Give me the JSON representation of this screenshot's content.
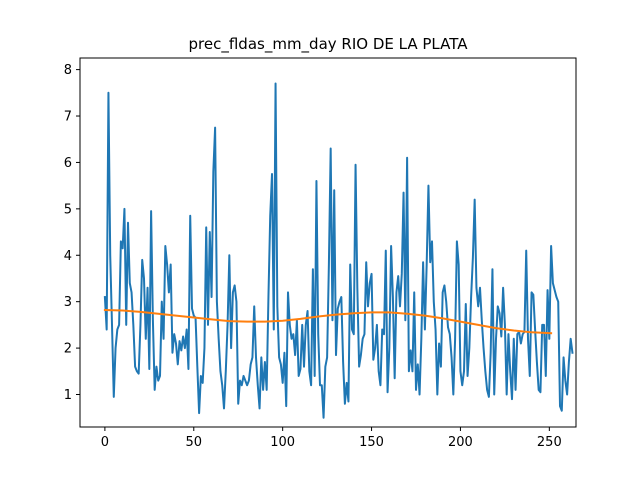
{
  "chart_data": {
    "type": "line",
    "title": "prec_fldas_mm_day RIO DE LA PLATA",
    "xlabel": "",
    "ylabel": "",
    "xlim": [
      -14,
      265
    ],
    "ylim": [
      0.3,
      8.25
    ],
    "grid": false,
    "xticks": [
      0,
      50,
      100,
      150,
      200,
      250
    ],
    "yticks": [
      1,
      2,
      3,
      4,
      5,
      6,
      7,
      8
    ],
    "colors": {
      "series_raw": "#1f77b4",
      "series_trend": "#ff7f0e"
    },
    "series": [
      {
        "values": [
          3.1,
          2.4,
          7.5,
          4.0,
          2.5,
          0.95,
          2.0,
          2.4,
          2.5,
          4.3,
          4.15,
          5.0,
          2.5,
          4.7,
          3.4,
          3.2,
          2.5,
          1.6,
          1.5,
          1.45,
          2.5,
          3.9,
          3.5,
          2.2,
          3.3,
          1.55,
          4.95,
          2.6,
          1.1,
          1.6,
          1.3,
          1.4,
          3.0,
          2.2,
          4.2,
          3.8,
          3.2,
          3.8,
          1.9,
          2.3,
          2.1,
          1.65,
          2.15,
          1.95,
          2.25,
          2.0,
          2.4,
          1.55,
          4.85,
          2.85,
          2.7,
          2.65,
          1.6,
          0.6,
          1.4,
          1.25,
          2.0,
          4.6,
          2.5,
          4.5,
          3.1,
          5.8,
          6.75,
          3.0,
          2.2,
          1.5,
          1.2,
          0.7,
          1.5,
          2.5,
          4.0,
          2.0,
          3.2,
          3.35,
          3.0,
          0.8,
          1.3,
          1.2,
          1.4,
          1.3,
          1.2,
          1.3,
          1.65,
          1.8,
          2.9,
          1.8,
          1.2,
          0.7,
          1.8,
          1.1,
          1.7,
          1.1,
          3.1,
          4.85,
          5.75,
          2.4,
          7.7,
          2.9,
          1.8,
          1.65,
          1.25,
          1.9,
          0.75,
          3.2,
          2.5,
          2.2,
          2.3,
          1.85,
          2.6,
          1.4,
          1.55,
          2.5,
          1.6,
          2.5,
          2.8,
          1.5,
          1.2,
          3.7,
          1.4,
          5.6,
          2.3,
          1.2,
          1.2,
          0.5,
          1.6,
          1.8,
          3.8,
          6.3,
          2.6,
          5.4,
          1.85,
          2.85,
          3.0,
          3.1,
          1.7,
          0.8,
          1.25,
          0.85,
          3.8,
          2.4,
          2.3,
          5.95,
          3.3,
          1.6,
          1.85,
          2.2,
          2.3,
          3.85,
          2.9,
          3.4,
          3.6,
          1.75,
          2.0,
          2.5,
          1.5,
          1.2,
          2.4,
          2.3,
          4.1,
          1.05,
          2.0,
          4.2,
          3.1,
          1.35,
          3.2,
          3.55,
          2.9,
          3.6,
          5.35,
          2.6,
          6.1,
          1.5,
          1.95,
          1.5,
          3.2,
          1.1,
          1.65,
          1.0,
          2.2,
          3.85,
          2.4,
          3.8,
          5.5,
          3.85,
          4.3,
          3.0,
          2.4,
          1.0,
          2.1,
          1.6,
          3.2,
          3.35,
          3.0,
          2.45,
          2.3,
          1.8,
          1.0,
          2.2,
          4.3,
          3.8,
          1.5,
          1.2,
          1.5,
          2.95,
          1.4,
          2.0,
          3.1,
          3.95,
          5.2,
          3.3,
          2.9,
          3.3,
          2.6,
          2.0,
          1.5,
          1.1,
          0.95,
          1.9,
          3.7,
          1.0,
          2.2,
          2.9,
          2.75,
          2.25,
          3.3,
          2.5,
          1.0,
          2.3,
          1.5,
          0.9,
          2.2,
          1.1,
          2.3,
          2.35,
          2.1,
          2.3,
          2.35,
          4.1,
          2.2,
          1.4,
          3.2,
          3.15,
          2.4,
          1.7,
          1.1,
          1.05,
          2.5,
          2.5,
          1.4,
          3.25,
          2.2,
          4.2,
          3.4,
          3.25,
          3.1,
          3.0,
          0.75,
          0.65,
          1.8,
          1.3,
          1.0,
          1.7,
          2.2,
          1.9
        ],
        "x_start": 0
      },
      {
        "x": [
          0,
          10,
          20,
          30,
          40,
          50,
          60,
          70,
          80,
          90,
          100,
          110,
          120,
          130,
          140,
          150,
          160,
          170,
          180,
          190,
          200,
          210,
          220,
          230,
          240,
          251
        ],
        "values": [
          2.82,
          2.81,
          2.78,
          2.74,
          2.7,
          2.66,
          2.62,
          2.58,
          2.57,
          2.57,
          2.59,
          2.63,
          2.68,
          2.72,
          2.75,
          2.77,
          2.77,
          2.74,
          2.7,
          2.64,
          2.57,
          2.5,
          2.43,
          2.38,
          2.34,
          2.32
        ]
      }
    ]
  }
}
